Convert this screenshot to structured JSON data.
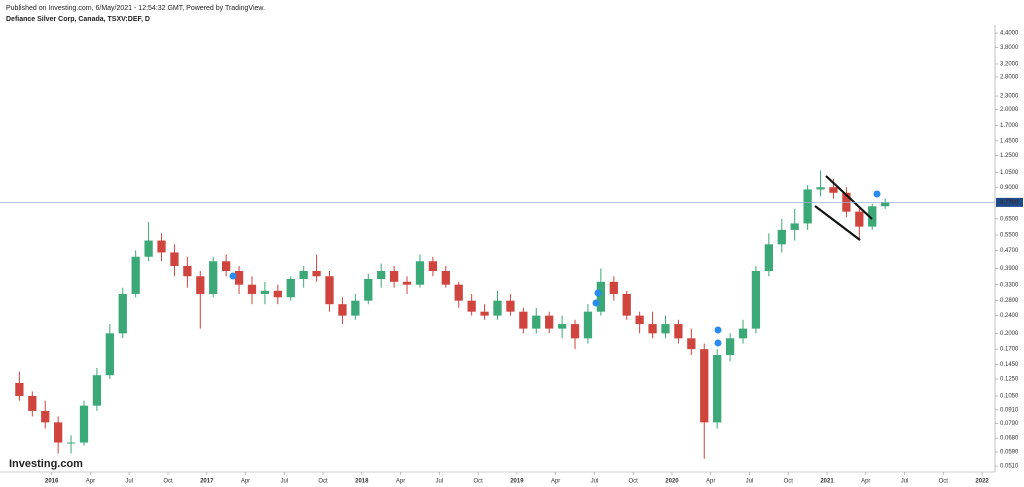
{
  "header": {
    "published": "Published on Investing.com, 6/May/2021 - 12:54:32 GMT, Powered by TradingView.",
    "instrument": "Defiance Silver Corp, Canada, TSXV:DEF, D"
  },
  "logo": "Investing.com",
  "chart_data": {
    "type": "candlestick",
    "log_scale": true,
    "grid": false,
    "up_color": "#3aa877",
    "down_color": "#d0443e",
    "x": [
      "2015-10",
      "2015-11",
      "2015-12",
      "2016-01",
      "2016-02",
      "2016-03",
      "2016-04",
      "2016-05",
      "2016-06",
      "2016-07",
      "2016-08",
      "2016-09",
      "2016-10",
      "2016-11",
      "2016-12",
      "2017-01",
      "2017-02",
      "2017-03",
      "2017-04",
      "2017-05",
      "2017-06",
      "2017-07",
      "2017-08",
      "2017-09",
      "2017-10",
      "2017-11",
      "2017-12",
      "2018-01",
      "2018-02",
      "2018-03",
      "2018-04",
      "2018-05",
      "2018-06",
      "2018-07",
      "2018-08",
      "2018-09",
      "2018-10",
      "2018-11",
      "2018-12",
      "2019-01",
      "2019-02",
      "2019-03",
      "2019-04",
      "2019-05",
      "2019-06",
      "2019-07",
      "2019-08",
      "2019-09",
      "2019-10",
      "2019-11",
      "2019-12",
      "2020-01",
      "2020-02",
      "2020-03",
      "2020-04",
      "2020-05",
      "2020-06",
      "2020-07",
      "2020-08",
      "2020-09",
      "2020-10",
      "2020-11",
      "2020-12",
      "2021-01",
      "2021-02",
      "2021-03",
      "2021-04",
      "2021-05"
    ],
    "open": [
      0.12,
      0.105,
      0.09,
      0.08,
      0.065,
      0.065,
      0.095,
      0.13,
      0.2,
      0.3,
      0.44,
      0.52,
      0.46,
      0.4,
      0.36,
      0.3,
      0.42,
      0.38,
      0.33,
      0.3,
      0.31,
      0.29,
      0.35,
      0.38,
      0.36,
      0.27,
      0.24,
      0.28,
      0.35,
      0.38,
      0.34,
      0.33,
      0.42,
      0.38,
      0.33,
      0.28,
      0.25,
      0.24,
      0.28,
      0.25,
      0.21,
      0.24,
      0.21,
      0.22,
      0.19,
      0.25,
      0.34,
      0.3,
      0.24,
      0.22,
      0.2,
      0.22,
      0.19,
      0.17,
      0.08,
      0.16,
      0.19,
      0.21,
      0.38,
      0.5,
      0.58,
      0.62,
      0.88,
      0.9,
      0.85,
      0.7,
      0.6,
      0.74
    ],
    "high": [
      0.135,
      0.11,
      0.1,
      0.085,
      0.07,
      0.1,
      0.14,
      0.22,
      0.32,
      0.47,
      0.63,
      0.56,
      0.5,
      0.44,
      0.38,
      0.44,
      0.45,
      0.4,
      0.36,
      0.34,
      0.33,
      0.36,
      0.4,
      0.45,
      0.38,
      0.29,
      0.3,
      0.37,
      0.41,
      0.4,
      0.36,
      0.45,
      0.44,
      0.4,
      0.34,
      0.3,
      0.27,
      0.31,
      0.3,
      0.26,
      0.26,
      0.25,
      0.24,
      0.23,
      0.27,
      0.39,
      0.36,
      0.31,
      0.25,
      0.25,
      0.24,
      0.23,
      0.21,
      0.18,
      0.17,
      0.2,
      0.23,
      0.4,
      0.56,
      0.65,
      0.72,
      0.92,
      1.07,
      0.98,
      0.9,
      0.74,
      0.76,
      0.8
    ],
    "low": [
      0.1,
      0.085,
      0.075,
      0.058,
      0.058,
      0.063,
      0.09,
      0.125,
      0.19,
      0.29,
      0.42,
      0.42,
      0.36,
      0.32,
      0.21,
      0.29,
      0.36,
      0.3,
      0.27,
      0.27,
      0.27,
      0.28,
      0.32,
      0.34,
      0.25,
      0.22,
      0.23,
      0.27,
      0.32,
      0.32,
      0.3,
      0.32,
      0.36,
      0.32,
      0.26,
      0.24,
      0.23,
      0.23,
      0.24,
      0.2,
      0.2,
      0.2,
      0.19,
      0.17,
      0.18,
      0.24,
      0.28,
      0.23,
      0.2,
      0.19,
      0.19,
      0.18,
      0.16,
      0.055,
      0.075,
      0.15,
      0.18,
      0.2,
      0.36,
      0.46,
      0.52,
      0.58,
      0.82,
      0.8,
      0.66,
      0.52,
      0.58,
      0.72
    ],
    "close": [
      0.105,
      0.09,
      0.08,
      0.065,
      0.065,
      0.095,
      0.13,
      0.2,
      0.3,
      0.44,
      0.52,
      0.46,
      0.4,
      0.36,
      0.3,
      0.42,
      0.38,
      0.33,
      0.3,
      0.31,
      0.29,
      0.35,
      0.38,
      0.36,
      0.27,
      0.24,
      0.28,
      0.35,
      0.38,
      0.34,
      0.33,
      0.42,
      0.38,
      0.33,
      0.28,
      0.25,
      0.24,
      0.28,
      0.25,
      0.21,
      0.24,
      0.21,
      0.22,
      0.19,
      0.25,
      0.34,
      0.3,
      0.24,
      0.22,
      0.2,
      0.22,
      0.19,
      0.17,
      0.08,
      0.16,
      0.19,
      0.21,
      0.38,
      0.5,
      0.58,
      0.62,
      0.88,
      0.9,
      0.85,
      0.7,
      0.6,
      0.74,
      0.77
    ],
    "xlim": [
      "2015-09",
      "2022-02"
    ],
    "xticks": [
      {
        "value": "2016-01",
        "label": "2016"
      },
      {
        "value": "2016-04",
        "label": "Apr"
      },
      {
        "value": "2016-07",
        "label": "Jul"
      },
      {
        "value": "2016-10",
        "label": "Oct"
      },
      {
        "value": "2017-01",
        "label": "2017"
      },
      {
        "value": "2017-04",
        "label": "Apr"
      },
      {
        "value": "2017-07",
        "label": "Jul"
      },
      {
        "value": "2017-10",
        "label": "Oct"
      },
      {
        "value": "2018-01",
        "label": "2018"
      },
      {
        "value": "2018-04",
        "label": "Apr"
      },
      {
        "value": "2018-07",
        "label": "Jul"
      },
      {
        "value": "2018-10",
        "label": "Oct"
      },
      {
        "value": "2019-01",
        "label": "2019"
      },
      {
        "value": "2019-04",
        "label": "Apr"
      },
      {
        "value": "2019-07",
        "label": "Jul"
      },
      {
        "value": "2019-10",
        "label": "Oct"
      },
      {
        "value": "2020-01",
        "label": "2020"
      },
      {
        "value": "2020-04",
        "label": "Apr"
      },
      {
        "value": "2020-07",
        "label": "Jul"
      },
      {
        "value": "2020-10",
        "label": "Oct"
      },
      {
        "value": "2021-01",
        "label": "2021"
      },
      {
        "value": "2021-04",
        "label": "Apr"
      },
      {
        "value": "2021-07",
        "label": "Jul"
      },
      {
        "value": "2021-10",
        "label": "Oct"
      },
      {
        "value": "2022-01",
        "label": "2022"
      }
    ],
    "ylim": [
      0.048,
      4.78
    ],
    "yticks": [
      {
        "value": 4.4,
        "label": "4.4000"
      },
      {
        "value": 3.8,
        "label": "3.8000"
      },
      {
        "value": 3.2,
        "label": "3.2000"
      },
      {
        "value": 2.8,
        "label": "2.8000"
      },
      {
        "value": 2.3,
        "label": "2.3000"
      },
      {
        "value": 2.0,
        "label": "2.0000"
      },
      {
        "value": 1.7,
        "label": "1.7000"
      },
      {
        "value": 1.45,
        "label": "1.4500"
      },
      {
        "value": 1.25,
        "label": "1.2500"
      },
      {
        "value": 1.05,
        "label": "1.0500"
      },
      {
        "value": 0.9,
        "label": "0.9000"
      },
      {
        "value": 0.65,
        "label": "0.6500"
      },
      {
        "value": 0.55,
        "label": "0.5500"
      },
      {
        "value": 0.47,
        "label": "0.4700"
      },
      {
        "value": 0.39,
        "label": "0.3900"
      },
      {
        "value": 0.33,
        "label": "0.3300"
      },
      {
        "value": 0.28,
        "label": "0.2800"
      },
      {
        "value": 0.24,
        "label": "0.2400"
      },
      {
        "value": 0.2,
        "label": "0.2000"
      },
      {
        "value": 0.17,
        "label": "0.1700"
      },
      {
        "value": 0.145,
        "label": "0.1450"
      },
      {
        "value": 0.125,
        "label": "0.1250"
      },
      {
        "value": 0.105,
        "label": "0.1050"
      },
      {
        "value": 0.091,
        "label": "0.0910"
      },
      {
        "value": 0.079,
        "label": "0.0790"
      },
      {
        "value": 0.068,
        "label": "0.0680"
      },
      {
        "value": 0.059,
        "label": "0.0590"
      },
      {
        "value": 0.051,
        "label": "0.0510"
      }
    ],
    "last_price": {
      "value": 0.77,
      "label": "0.7700"
    }
  }
}
